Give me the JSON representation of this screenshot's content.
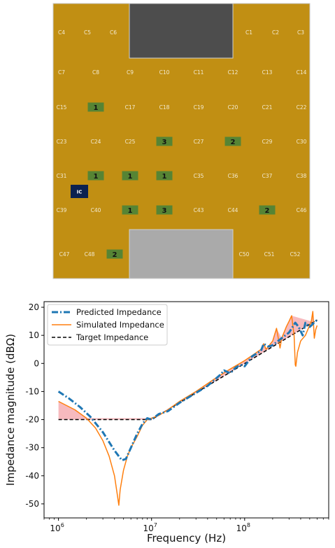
{
  "board": {
    "colors": {
      "board": "#c18f13",
      "board_edge": "#c7c7c7",
      "top_port": "#4d4d4d",
      "bottom_port": "#aaaaaa",
      "cap_fill": "#568434",
      "ic_fill": "#0b2150",
      "label": "#f3ead0"
    },
    "ic_label": "IC",
    "cells": [
      {
        "id": "C1"
      },
      {
        "id": "C2"
      },
      {
        "id": "C3"
      },
      {
        "id": "C4"
      },
      {
        "id": "C5"
      },
      {
        "id": "C6"
      },
      {
        "id": "C7"
      },
      {
        "id": "C8"
      },
      {
        "id": "C9"
      },
      {
        "id": "C10"
      },
      {
        "id": "C11"
      },
      {
        "id": "C12"
      },
      {
        "id": "C13"
      },
      {
        "id": "C14"
      },
      {
        "id": "C15",
        "placed": null
      },
      {
        "id": "1"
      },
      {
        "id": "C17"
      },
      {
        "id": "C18"
      },
      {
        "id": "C19"
      },
      {
        "id": "C20"
      },
      {
        "id": "C21"
      },
      {
        "id": "C22"
      },
      {
        "id": "C23"
      },
      {
        "id": "C24"
      },
      {
        "id": "C25"
      },
      {
        "id": "3"
      },
      {
        "id": "C27"
      },
      {
        "id": "2"
      },
      {
        "id": "C29"
      },
      {
        "id": "C30"
      },
      {
        "id": "C31"
      },
      {
        "id": "1"
      },
      {
        "id": "1"
      },
      {
        "id": "1"
      },
      {
        "id": "C35"
      },
      {
        "id": "C36"
      },
      {
        "id": "C37"
      },
      {
        "id": "C38"
      },
      {
        "id": "C39"
      },
      {
        "id": "C40"
      },
      {
        "id": "1"
      },
      {
        "id": "3"
      },
      {
        "id": "C43"
      },
      {
        "id": "C44"
      },
      {
        "id": "2"
      },
      {
        "id": "C46"
      },
      {
        "id": "C47"
      },
      {
        "id": "C48"
      },
      {
        "id": "2"
      },
      {
        "id": "C50"
      },
      {
        "id": "C51"
      },
      {
        "id": "C52"
      }
    ]
  },
  "chart_data": {
    "type": "line",
    "title": "",
    "xlabel": "Frequency (Hz)",
    "ylabel": "Impedance magnitude (dBΩ)",
    "xscale": "log",
    "xlim": [
      700000,
      800000000
    ],
    "ylim": [
      -55,
      22
    ],
    "xticks": [
      {
        "value": 1000000,
        "base": "10",
        "exp": "6"
      },
      {
        "value": 10000000,
        "base": "10",
        "exp": "7"
      },
      {
        "value": 100000000,
        "base": "10",
        "exp": "8"
      }
    ],
    "yticks": [
      20,
      10,
      0,
      -10,
      -20,
      -30,
      -40,
      -50
    ],
    "legend_position": "top-left",
    "grid": false,
    "series": [
      {
        "name": "Predicted Impedance",
        "color": "#1f77b4",
        "style": "dashdot",
        "x": [
          1000000,
          1300000,
          1700000,
          2200000,
          3000000,
          4000000,
          4800000,
          5300000,
          6000000,
          7000000,
          8000000,
          9000000,
          10000000,
          12000000,
          15000000,
          20000000,
          30000000,
          40000000,
          55000000,
          60000000,
          70000000,
          80000000,
          90000000,
          100000000,
          120000000,
          150000000,
          160000000,
          180000000,
          200000000,
          250000000,
          300000000,
          350000000,
          380000000,
          420000000,
          450000000,
          500000000,
          600000000
        ],
        "y": [
          -10,
          -12.5,
          -15.5,
          -19,
          -24.5,
          -31,
          -34.5,
          -34,
          -30,
          -25,
          -21.5,
          -19.5,
          -20,
          -18,
          -17,
          -14,
          -10.5,
          -8,
          -4,
          -2.5,
          -3.5,
          -1.5,
          -0.5,
          -1,
          2.5,
          4.5,
          7,
          6,
          6.5,
          9,
          11,
          14.5,
          13,
          10,
          14.5,
          13,
          15.5
        ]
      },
      {
        "name": "Simulated Impedance",
        "color": "#ff7f0e",
        "style": "solid",
        "x": [
          1000000,
          1500000,
          2000000,
          2500000,
          3000000,
          3500000,
          4000000,
          4300000,
          4450000,
          4600000,
          5000000,
          5500000,
          6000000,
          7000000,
          8000000,
          9000000,
          10000000,
          11000000,
          12000000,
          15000000,
          20000000,
          30000000,
          50000000,
          70000000,
          100000000,
          150000000,
          160000000,
          170000000,
          200000000,
          220000000,
          240000000,
          250000000,
          280000000,
          300000000,
          320000000,
          340000000,
          350000000,
          355000000,
          370000000,
          400000000,
          450000000,
          520000000,
          540000000,
          560000000,
          580000000,
          600000000
        ],
        "y": [
          -13.5,
          -16.5,
          -19.5,
          -23,
          -27.5,
          -33,
          -40,
          -47,
          -50.5,
          -45,
          -38,
          -33,
          -30,
          -26,
          -22,
          -20,
          -19.5,
          -19,
          -18.5,
          -16.5,
          -13.5,
          -10,
          -5,
          -2,
          1,
          5,
          7,
          5,
          8,
          12.5,
          5.5,
          9,
          13,
          15,
          17,
          10,
          -0.5,
          -1,
          4,
          8,
          10,
          15,
          18.5,
          9,
          12,
          13.5
        ]
      },
      {
        "name": "Target Impedance",
        "color": "#000000",
        "style": "dashed",
        "x": [
          1000000,
          10000000,
          600000000
        ],
        "y": [
          -20,
          -20,
          15.5
        ]
      }
    ],
    "shaded_region": {
      "color": "#f4a3a8",
      "between": [
        "Simulated Impedance",
        "Target Impedance"
      ]
    }
  }
}
